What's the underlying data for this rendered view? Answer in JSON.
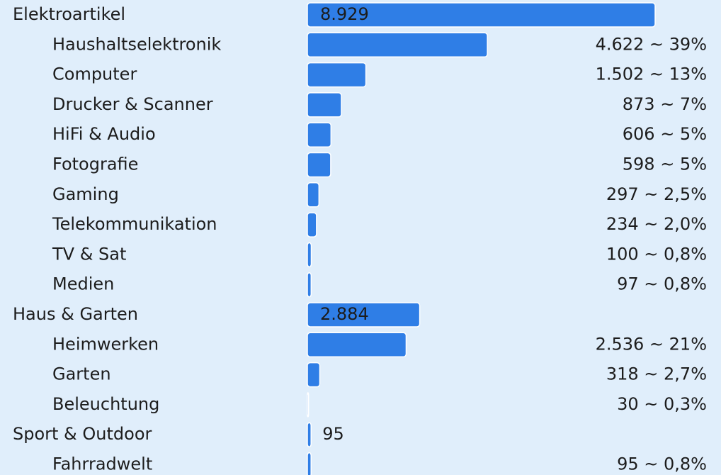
{
  "chart_data": {
    "type": "bar",
    "color": "#2f7ee6",
    "groups": [
      {
        "name": "Elektroartikel",
        "value": 8929,
        "value_label": "8.929",
        "items": [
          {
            "name": "Haushaltselektronik",
            "value": 4622,
            "value_label": "4.622 ~ 39%"
          },
          {
            "name": "Computer",
            "value": 1502,
            "value_label": "1.502 ~ 13%"
          },
          {
            "name": "Drucker & Scanner",
            "value": 873,
            "value_label": "873 ~ 7%"
          },
          {
            "name": "HiFi & Audio",
            "value": 606,
            "value_label": "606 ~ 5%"
          },
          {
            "name": "Fotografie",
            "value": 598,
            "value_label": "598 ~ 5%"
          },
          {
            "name": "Gaming",
            "value": 297,
            "value_label": "297 ~ 2,5%"
          },
          {
            "name": "Telekommunikation",
            "value": 234,
            "value_label": "234 ~ 2,0%"
          },
          {
            "name": "TV & Sat",
            "value": 100,
            "value_label": "100 ~ 0,8%"
          },
          {
            "name": "Medien",
            "value": 97,
            "value_label": "97 ~ 0,8%"
          }
        ]
      },
      {
        "name": "Haus & Garten",
        "value": 2884,
        "value_label": "2.884",
        "items": [
          {
            "name": "Heimwerken",
            "value": 2536,
            "value_label": "2.536 ~ 21%"
          },
          {
            "name": "Garten",
            "value": 318,
            "value_label": "318 ~ 2,7%"
          },
          {
            "name": "Beleuchtung",
            "value": 30,
            "value_label": "30 ~ 0,3%"
          }
        ]
      },
      {
        "name": "Sport & Outdoor",
        "value": 95,
        "value_label": "95",
        "items": [
          {
            "name": "Fahrradwelt",
            "value": 95,
            "value_label": "95 ~ 0,8%"
          }
        ]
      }
    ]
  }
}
